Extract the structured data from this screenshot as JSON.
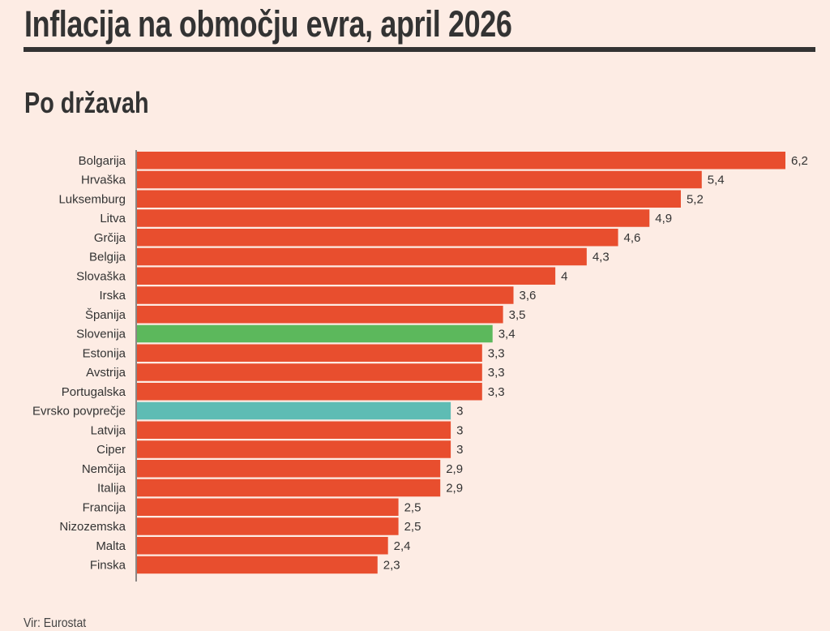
{
  "title": "Inflacija na območju evra, april 2026",
  "subtitle": "Po državah",
  "source": "Vir: Eurostat",
  "colors": {
    "background": "#fdece4",
    "country": "#e84e2e",
    "slovenia": "#5cb85c",
    "euro_average": "#5ebcb4"
  },
  "chart_data": {
    "type": "bar",
    "orientation": "horizontal",
    "categories": [
      "Bolgarija",
      "Hrvaška",
      "Luksemburg",
      "Litva",
      "Grčija",
      "Belgija",
      "Slovaška",
      "Irska",
      "Španija",
      "Slovenija",
      "Estonija",
      "Avstrija",
      "Portugalska",
      "Evrsko povprečje",
      "Latvija",
      "Ciper",
      "Nemčija",
      "Italija",
      "Francija",
      "Nizozemska",
      "Malta",
      "Finska"
    ],
    "values": [
      6.2,
      5.4,
      5.2,
      4.9,
      4.6,
      4.3,
      4,
      3.6,
      3.5,
      3.4,
      3.3,
      3.3,
      3.3,
      3,
      3,
      3,
      2.9,
      2.9,
      2.5,
      2.5,
      2.4,
      2.3
    ],
    "data_labels": [
      "6,2",
      "5,4",
      "5,2",
      "4,9",
      "4,6",
      "4,3",
      "4",
      "3,6",
      "3,5",
      "3,4",
      "3,3",
      "3,3",
      "3,3",
      "3",
      "3",
      "3",
      "2,9",
      "2,9",
      "2,5",
      "2,5",
      "2,4",
      "2,3"
    ],
    "highlight": {
      "Slovenija": "slovenia",
      "Evrsko povprečje": "euro_average"
    },
    "xlim": [
      0,
      6.2
    ],
    "grid": false,
    "legend": "none"
  }
}
